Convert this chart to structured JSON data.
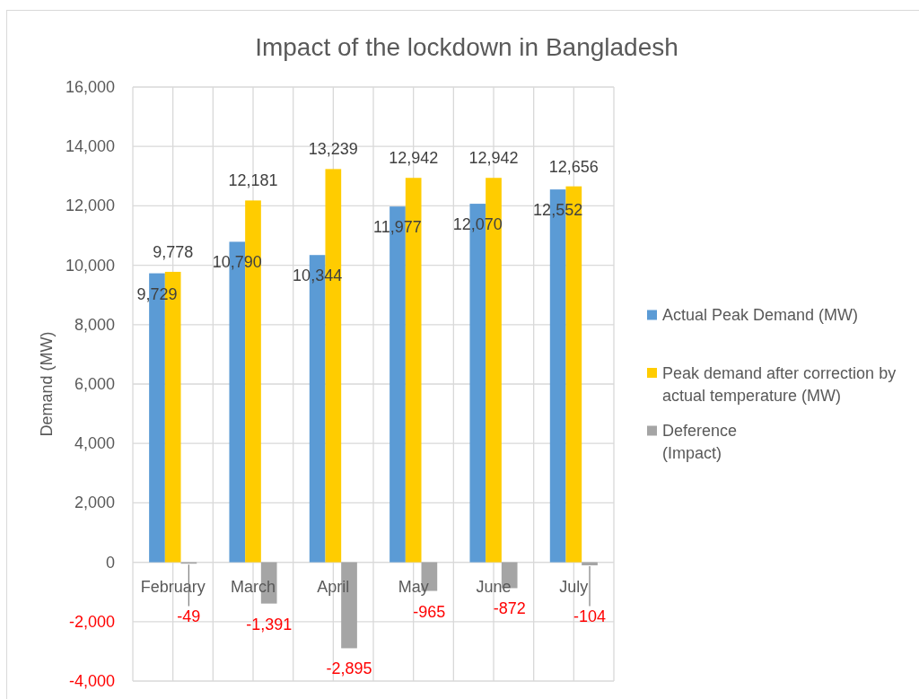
{
  "chart_data": {
    "type": "bar",
    "title": "Impact of the lockdown in Bangladesh",
    "ylabel": "Demand (MW)",
    "categories": [
      "February",
      "March",
      "April",
      "May",
      "June",
      "July"
    ],
    "series": [
      {
        "name": "Actual Peak Demand (MW)",
        "color": "#5b9bd5",
        "values": [
          9729,
          10790,
          10344,
          11977,
          12070,
          12552
        ],
        "value_labels": [
          "9,729",
          "10,790",
          "10,344",
          "11,977",
          "12,070",
          "12,552"
        ]
      },
      {
        "name": "Peak demand after correction by actual temperature (MW)",
        "color": "#ffcc00",
        "values": [
          9778,
          12181,
          13239,
          12942,
          12942,
          12656
        ],
        "value_labels": [
          "9,778",
          "12,181",
          "13,239",
          "12,942",
          "12,942",
          "12,656"
        ]
      },
      {
        "name": "Deference\n(Impact)",
        "color": "#a5a5a5",
        "values": [
          -49,
          -1391,
          -2895,
          -965,
          -872,
          -104
        ],
        "value_labels": [
          "-49",
          "-1,391",
          "-2,895",
          "-965",
          "-872",
          "-104"
        ]
      }
    ],
    "ylim": [
      -4000,
      16000
    ],
    "yticks": [
      {
        "value": -4000,
        "label": "-4,000"
      },
      {
        "value": -2000,
        "label": "-2,000"
      },
      0,
      {
        "value": 2000,
        "label": "2,000"
      },
      {
        "value": 4000,
        "label": "4,000"
      },
      {
        "value": 6000,
        "label": "6,000"
      },
      {
        "value": 8000,
        "label": "8,000"
      },
      {
        "value": 10000,
        "label": "10,000"
      },
      {
        "value": 12000,
        "label": "12,000"
      },
      {
        "value": 14000,
        "label": "14,000"
      },
      {
        "value": 16000,
        "label": "16,000"
      }
    ],
    "grid": true,
    "legend": "right"
  }
}
